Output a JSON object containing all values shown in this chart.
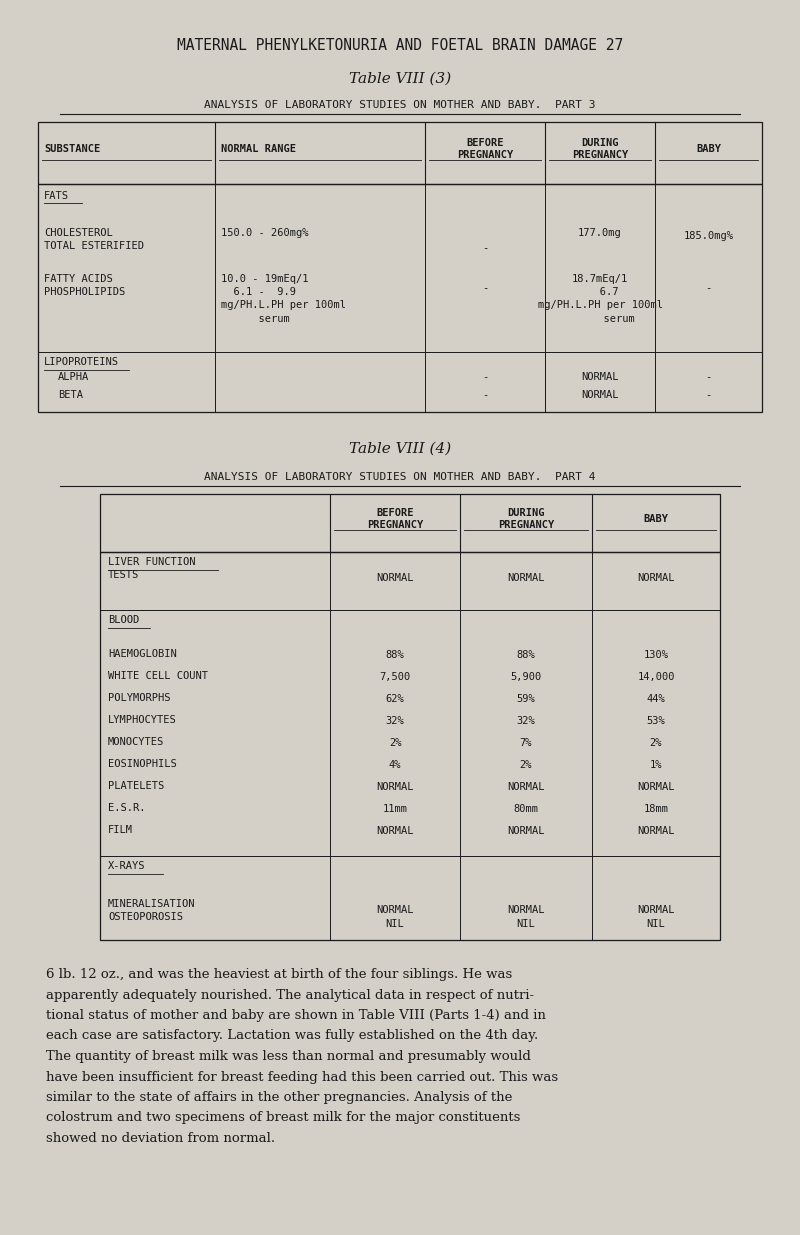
{
  "bg_color": "#d4cfc7",
  "text_color": "#1a1a1a",
  "page_title": "MATERNAL PHENYLKETONURIA AND FOETAL BRAIN DAMAGE 27",
  "table1_title": "Table VIII (3)",
  "table1_subtitle": "ANALYSIS OF LABORATORY STUDIES ON MOTHER AND BABY.  PART 3",
  "table2_title": "Table VIII (4)",
  "table2_subtitle": "ANALYSIS OF LABORATORY STUDIES ON MOTHER AND BABY.  PART 4",
  "body_text_lines": [
    "6 lb. 12 oz., and was the heaviest at birth of the four siblings. He was",
    "apparently adequately nourished. The analytical data in respect of nutri-",
    "tional status of mother and baby are shown in Table VIII (Parts 1-4) and in",
    "each case are satisfactory. Lactation was fully established on the 4th day.",
    "The quantity of breast milk was less than normal and presumably would",
    "have been insufficient for breast feeding had this been carried out. This was",
    "similar to the state of affairs in the other pregnancies. Analysis of the",
    "colostrum and two specimens of breast milk for the major constituents",
    "showed no deviation from normal."
  ]
}
